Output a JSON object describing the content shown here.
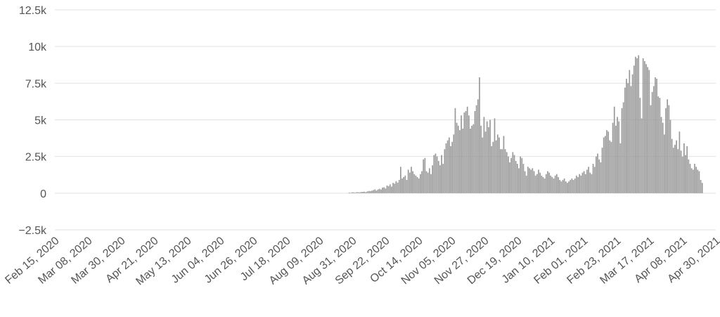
{
  "chart_data": {
    "type": "bar",
    "title": "",
    "xlabel": "",
    "ylabel": "",
    "ylim": [
      -2500,
      12500
    ],
    "yticks": [
      {
        "value": 12500,
        "label": "12.5k"
      },
      {
        "value": 10000,
        "label": "10k"
      },
      {
        "value": 7500,
        "label": "7.5k"
      },
      {
        "value": 5000,
        "label": "5k"
      },
      {
        "value": 2500,
        "label": "2.5k"
      },
      {
        "value": 0,
        "label": "0"
      },
      {
        "value": -2500,
        "label": "−2.5k"
      }
    ],
    "xticks": [
      "Feb 15, 2020",
      "Mar 08, 2020",
      "Mar 30, 2020",
      "Apr 21, 2020",
      "May 13, 2020",
      "Jun 04, 2020",
      "Jun 26, 2020",
      "Jul 18, 2020",
      "Aug 09, 2020",
      "Aug 31, 2020",
      "Sep 22, 2020",
      "Oct 14, 2020",
      "Nov 05, 2020",
      "Nov 27, 2020",
      "Dec 19, 2020",
      "Jan 10, 2021",
      "Feb 01, 2021",
      "Feb 23, 2021",
      "Mar 17, 2021",
      "Apr 08, 2021",
      "Apr 30, 2021"
    ],
    "grid": true,
    "legend": "none",
    "series_color": "#999999",
    "x_start": "Feb 15, 2020",
    "x_end": "May 06, 2021",
    "bar_start": "Aug 24, 2020",
    "values": [
      40,
      30,
      60,
      50,
      40,
      70,
      60,
      60,
      80,
      90,
      100,
      70,
      120,
      150,
      140,
      170,
      210,
      260,
      180,
      250,
      300,
      250,
      380,
      400,
      320,
      520,
      480,
      600,
      450,
      700,
      650,
      820,
      720,
      900,
      1800,
      1000,
      1100,
      1200,
      900,
      1600,
      1400,
      1800,
      1500,
      1300,
      1200,
      1100,
      1000,
      1300,
      1500,
      2300,
      2400,
      1500,
      1400,
      1700,
      1300,
      1900,
      2600,
      2700,
      2500,
      2200,
      1900,
      2600,
      2000,
      3000,
      3400,
      3600,
      3800,
      3200,
      3500,
      4000,
      5800,
      4800,
      4600,
      4300,
      5300,
      4400,
      5500,
      5600,
      5900,
      5300,
      4400,
      4600,
      4700,
      5600,
      6000,
      6400,
      7900,
      4600,
      3800,
      5200,
      4200,
      4900,
      4500,
      5000,
      3200,
      3500,
      5100,
      3600,
      4000,
      3800,
      3000,
      3000,
      3900,
      3000,
      2800,
      2500,
      2100,
      2400,
      2800,
      2600,
      2200,
      2000,
      1700,
      2500,
      2400,
      2000,
      1500,
      1200,
      1800,
      1700,
      1600,
      1700,
      1500,
      1200,
      1300,
      1600,
      1400,
      1200,
      1100,
      1000,
      1300,
      1500,
      1400,
      1200,
      1100,
      1000,
      1200,
      1300,
      1100,
      900,
      800,
      900,
      1000,
      800,
      700,
      800,
      900,
      1000,
      900,
      1000,
      1200,
      1100,
      1300,
      1200,
      1400,
      1500,
      1300,
      1600,
      1800,
      1400,
      1300,
      2000,
      1800,
      2500,
      2700,
      2300,
      2100,
      3100,
      3800,
      3900,
      4300,
      4200,
      3600,
      3500,
      4800,
      5900,
      4600,
      5200,
      4900,
      3400,
      5800,
      6200,
      7200,
      7800,
      7500,
      8400,
      7300,
      8100,
      8700,
      9300,
      9200,
      9400,
      6500,
      5100,
      9200,
      9000,
      8800,
      8600,
      8400,
      6000,
      6900,
      7300,
      7900,
      7800,
      6600,
      6500,
      5200,
      4800,
      4000,
      5800,
      6400,
      6000,
      5000,
      3700,
      3100,
      3300,
      3600,
      3000,
      4200,
      2900,
      2500,
      3400,
      2600,
      3200,
      2300,
      2000,
      1700,
      1600,
      2000,
      1800,
      1600,
      1500,
      900,
      700
    ]
  }
}
